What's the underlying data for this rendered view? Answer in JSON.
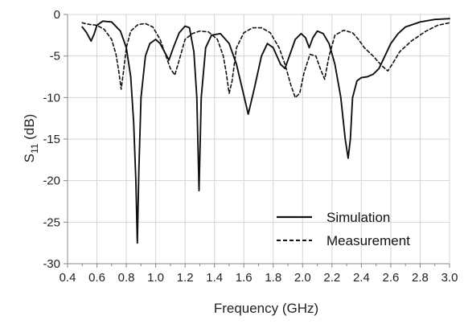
{
  "chart_data": {
    "type": "line",
    "xlabel": "Frequency (GHz)",
    "ylabel_main": "S",
    "ylabel_sub": "11",
    "ylabel_unit": " (dB)",
    "xlim": [
      0.4,
      3.0
    ],
    "ylim": [
      -30,
      0
    ],
    "x_ticks": [
      "0.4",
      "0.6",
      "0.8",
      "1.0",
      "1.2",
      "1.4",
      "1.6",
      "1.8",
      "2.0",
      "2.2",
      "2.4",
      "2.6",
      "2.8",
      "3.0"
    ],
    "y_ticks": [
      "0",
      "-5",
      "-10",
      "-15",
      "-20",
      "-25",
      "-30"
    ],
    "grid": true,
    "legend_position": "bottom-right",
    "series": [
      {
        "name": "Simulation",
        "style": "solid",
        "x": [
          0.5,
          0.53,
          0.56,
          0.58,
          0.6,
          0.64,
          0.7,
          0.76,
          0.8,
          0.83,
          0.85,
          0.865,
          0.875,
          0.885,
          0.9,
          0.93,
          0.96,
          1.0,
          1.03,
          1.06,
          1.09,
          1.12,
          1.16,
          1.2,
          1.23,
          1.26,
          1.28,
          1.295,
          1.31,
          1.34,
          1.38,
          1.44,
          1.5,
          1.55,
          1.59,
          1.63,
          1.67,
          1.72,
          1.76,
          1.8,
          1.85,
          1.88,
          1.91,
          1.95,
          1.99,
          2.02,
          2.045,
          2.07,
          2.1,
          2.14,
          2.18,
          2.22,
          2.26,
          2.29,
          2.31,
          2.325,
          2.34,
          2.37,
          2.4,
          2.44,
          2.48,
          2.52,
          2.56,
          2.6,
          2.65,
          2.7,
          2.8,
          2.9,
          3.0
        ],
        "y": [
          -1.5,
          -2.2,
          -3.2,
          -2.4,
          -1.3,
          -0.8,
          -0.9,
          -2.0,
          -4.0,
          -7.5,
          -13.0,
          -20.0,
          -27.5,
          -19.0,
          -10.0,
          -5.0,
          -3.5,
          -3.0,
          -3.5,
          -4.5,
          -5.5,
          -4.0,
          -2.2,
          -1.4,
          -1.6,
          -4.5,
          -10.0,
          -21.2,
          -10.0,
          -4.0,
          -2.5,
          -2.3,
          -3.5,
          -6.0,
          -9.0,
          -12.0,
          -9.0,
          -5.0,
          -3.5,
          -4.0,
          -6.0,
          -6.5,
          -5.0,
          -3.0,
          -2.3,
          -2.8,
          -4.0,
          -2.8,
          -2.0,
          -2.3,
          -3.5,
          -6.0,
          -10.0,
          -15.0,
          -17.3,
          -15.0,
          -10.0,
          -8.0,
          -7.6,
          -7.5,
          -7.2,
          -6.5,
          -5.0,
          -3.5,
          -2.3,
          -1.5,
          -0.9,
          -0.6,
          -0.5
        ]
      },
      {
        "name": "Measurement",
        "style": "dashed",
        "x": [
          0.5,
          0.52,
          0.55,
          0.6,
          0.65,
          0.7,
          0.73,
          0.75,
          0.765,
          0.78,
          0.8,
          0.83,
          0.88,
          0.93,
          0.98,
          1.03,
          1.07,
          1.1,
          1.13,
          1.16,
          1.2,
          1.25,
          1.3,
          1.36,
          1.42,
          1.46,
          1.48,
          1.5,
          1.52,
          1.55,
          1.6,
          1.66,
          1.72,
          1.78,
          1.84,
          1.88,
          1.92,
          1.95,
          1.98,
          2.01,
          2.05,
          2.09,
          2.12,
          2.15,
          2.18,
          2.22,
          2.28,
          2.34,
          2.38,
          2.42,
          2.48,
          2.53,
          2.56,
          2.58,
          2.61,
          2.66,
          2.74,
          2.84,
          2.92,
          3.0
        ],
        "y": [
          -1.0,
          -1.1,
          -1.2,
          -1.3,
          -1.8,
          -3.0,
          -4.8,
          -7.0,
          -9.0,
          -7.0,
          -4.0,
          -2.0,
          -1.2,
          -1.1,
          -1.5,
          -3.0,
          -5.0,
          -6.5,
          -7.3,
          -5.5,
          -3.0,
          -2.3,
          -2.0,
          -2.1,
          -3.0,
          -5.0,
          -7.0,
          -9.5,
          -8.0,
          -4.0,
          -2.2,
          -1.6,
          -1.6,
          -2.2,
          -4.0,
          -6.0,
          -8.5,
          -10.0,
          -9.5,
          -7.0,
          -4.8,
          -5.0,
          -6.5,
          -7.8,
          -5.0,
          -2.5,
          -1.9,
          -2.2,
          -3.0,
          -4.0,
          -5.0,
          -6.0,
          -6.5,
          -6.8,
          -6.0,
          -4.5,
          -3.2,
          -2.0,
          -1.3,
          -1.0
        ]
      }
    ]
  }
}
